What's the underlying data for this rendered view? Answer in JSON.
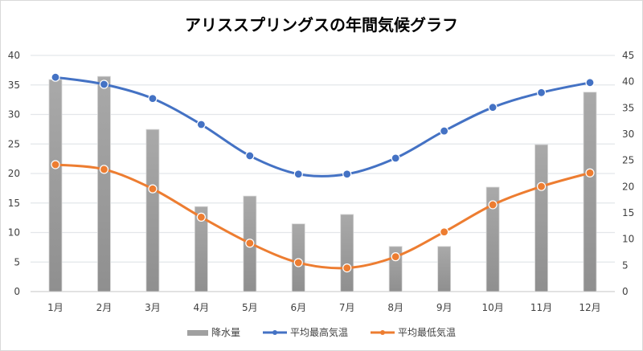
{
  "chart_data": {
    "type": "bar+line",
    "title": "アリススプリングスの年間気候グラフ",
    "categories": [
      "1月",
      "2月",
      "3月",
      "4月",
      "5月",
      "6月",
      "7月",
      "8月",
      "9月",
      "10月",
      "11月",
      "12月"
    ],
    "y_left": {
      "range": [
        0,
        40
      ],
      "ticks": [
        0,
        5,
        10,
        15,
        20,
        25,
        30,
        35,
        40
      ]
    },
    "y_right": {
      "range": [
        0,
        45
      ],
      "ticks": [
        0,
        5,
        10,
        15,
        20,
        25,
        30,
        35,
        40,
        45
      ]
    },
    "grid": true,
    "legend_position": "bottom",
    "series": [
      {
        "name": "降水量",
        "type": "bar",
        "axis": "right",
        "color": "#a0a0a0",
        "values": [
          40.4,
          41.0,
          30.9,
          16.2,
          18.2,
          12.9,
          14.7,
          8.6,
          8.6,
          19.9,
          28.0,
          38.0
        ]
      },
      {
        "name": "平均最高気温",
        "type": "line",
        "axis": "left",
        "color": "#4472c4",
        "values": [
          36.3,
          35.1,
          32.7,
          28.3,
          23.0,
          19.9,
          19.9,
          22.6,
          27.2,
          31.2,
          33.7,
          35.4
        ]
      },
      {
        "name": "平均最低気温",
        "type": "line",
        "axis": "left",
        "color": "#ed7d31",
        "values": [
          21.5,
          20.7,
          17.4,
          12.6,
          8.2,
          4.9,
          4.0,
          5.9,
          10.1,
          14.7,
          17.8,
          20.1
        ]
      }
    ]
  }
}
